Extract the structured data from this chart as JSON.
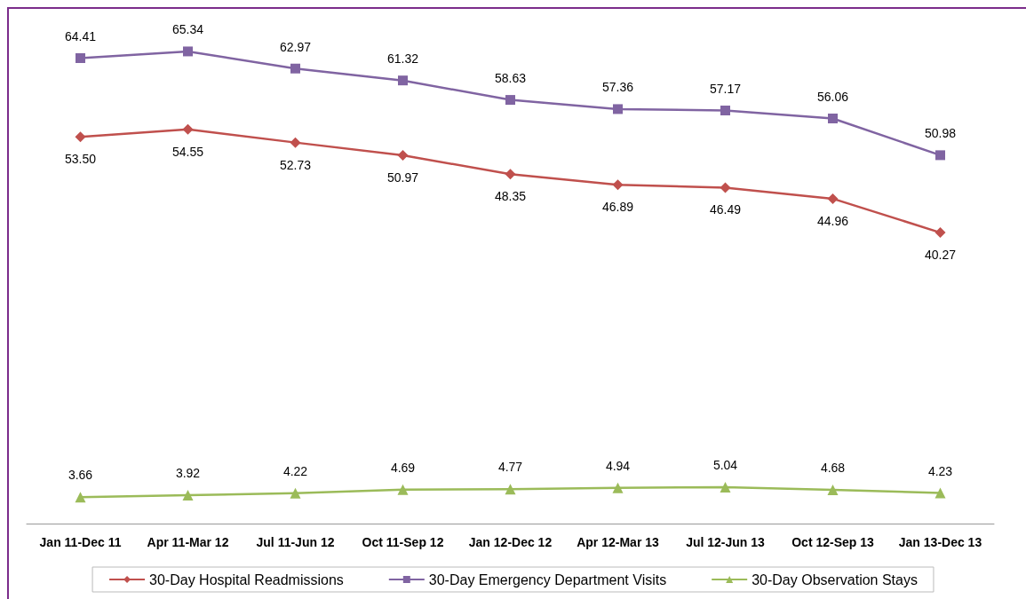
{
  "chart_data": {
    "type": "line",
    "categories": [
      "Jan 11-Dec 11",
      "Apr 11-Mar 12",
      "Jul 11-Jun 12",
      "Oct 11-Sep 12",
      "Jan 12-Dec 12",
      "Apr 12-Mar 13",
      "Jul 12-Jun 13",
      "Oct 12-Sep 13",
      "Jan 13-Dec 13"
    ],
    "series": [
      {
        "name": "30-Day Hospital Readmissions",
        "color": "#c0504d",
        "marker": "diamond",
        "values": [
          53.5,
          54.55,
          52.73,
          50.97,
          48.35,
          46.89,
          46.49,
          44.96,
          40.27
        ],
        "value_labels": [
          "53.50",
          "54.55",
          "52.73",
          "50.97",
          "48.35",
          "46.89",
          "46.49",
          "44.96",
          "40.27"
        ]
      },
      {
        "name": "30-Day Emergency Department Visits",
        "color": "#8064a2",
        "marker": "square",
        "values": [
          64.41,
          65.34,
          62.97,
          61.32,
          58.63,
          57.36,
          57.17,
          56.06,
          50.98
        ],
        "value_labels": [
          "64.41",
          "65.34",
          "62.97",
          "61.32",
          "58.63",
          "57.36",
          "57.17",
          "56.06",
          "50.98"
        ]
      },
      {
        "name": "30-Day Observation Stays",
        "color": "#9bbb59",
        "marker": "triangle",
        "values": [
          3.66,
          3.92,
          4.22,
          4.69,
          4.77,
          4.94,
          5.04,
          4.68,
          4.23
        ],
        "value_labels": [
          "3.66",
          "3.92",
          "4.22",
          "4.69",
          "4.77",
          "4.94",
          "5.04",
          "4.68",
          "4.23"
        ]
      }
    ],
    "grid": false,
    "legend": "bottom",
    "tick_labels": "x"
  }
}
